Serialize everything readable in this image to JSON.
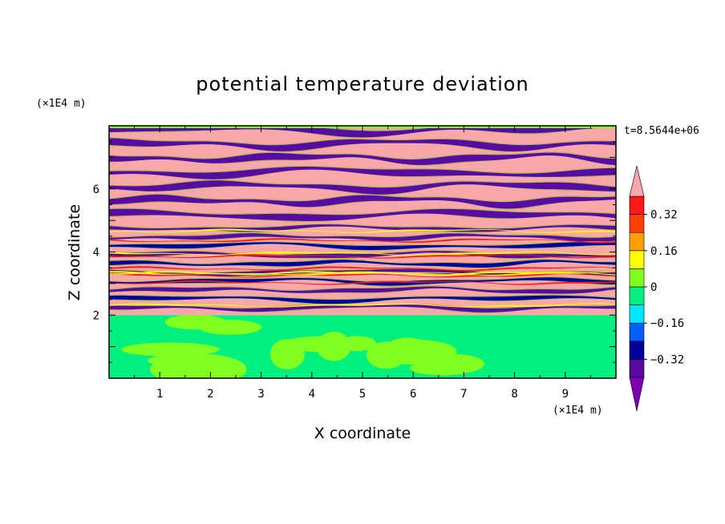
{
  "chart_data": {
    "type": "heatmap",
    "title": "potential temperature deviation",
    "xlabel": "X coordinate",
    "ylabel": "Z coordinate",
    "x_unit": "(×1E4 m)",
    "y_unit": "(×1E4 m)",
    "time_label": "t=8.5644e+06",
    "xlim": [
      0,
      10
    ],
    "ylim": [
      0,
      8
    ],
    "x_ticks": [
      "1",
      "2",
      "3",
      "4",
      "5",
      "6",
      "7",
      "8",
      "9"
    ],
    "y_ticks": [
      "2",
      "4",
      "6"
    ],
    "colorbar": {
      "levels": [
        -0.4,
        -0.32,
        -0.24,
        -0.16,
        -0.08,
        0,
        0.08,
        0.16,
        0.24,
        0.32,
        0.4
      ],
      "tick_labels": [
        "0.32",
        "0.16",
        "0",
        "−0.16",
        "−0.32"
      ],
      "tick_values": [
        0.32,
        0.16,
        0,
        -0.16,
        -0.32
      ],
      "extend": "both",
      "colors": [
        "#7a00b0",
        "#5a0aa0",
        "#00009c",
        "#0060ff",
        "#00e8ff",
        "#00f080",
        "#80ff20",
        "#ffff00",
        "#ffa000",
        "#ff4000",
        "#ff1818",
        "#f8a8a8"
      ]
    },
    "layers": [
      {
        "z_min": 0,
        "z_max": 2,
        "description_values": [
          0,
          0.08
        ],
        "colors": [
          "#00f080",
          "#80ff20"
        ]
      },
      {
        "z_min": 2,
        "z_max": 8,
        "alternating_band_values": [
          0.4,
          -0.4
        ]
      }
    ]
  }
}
